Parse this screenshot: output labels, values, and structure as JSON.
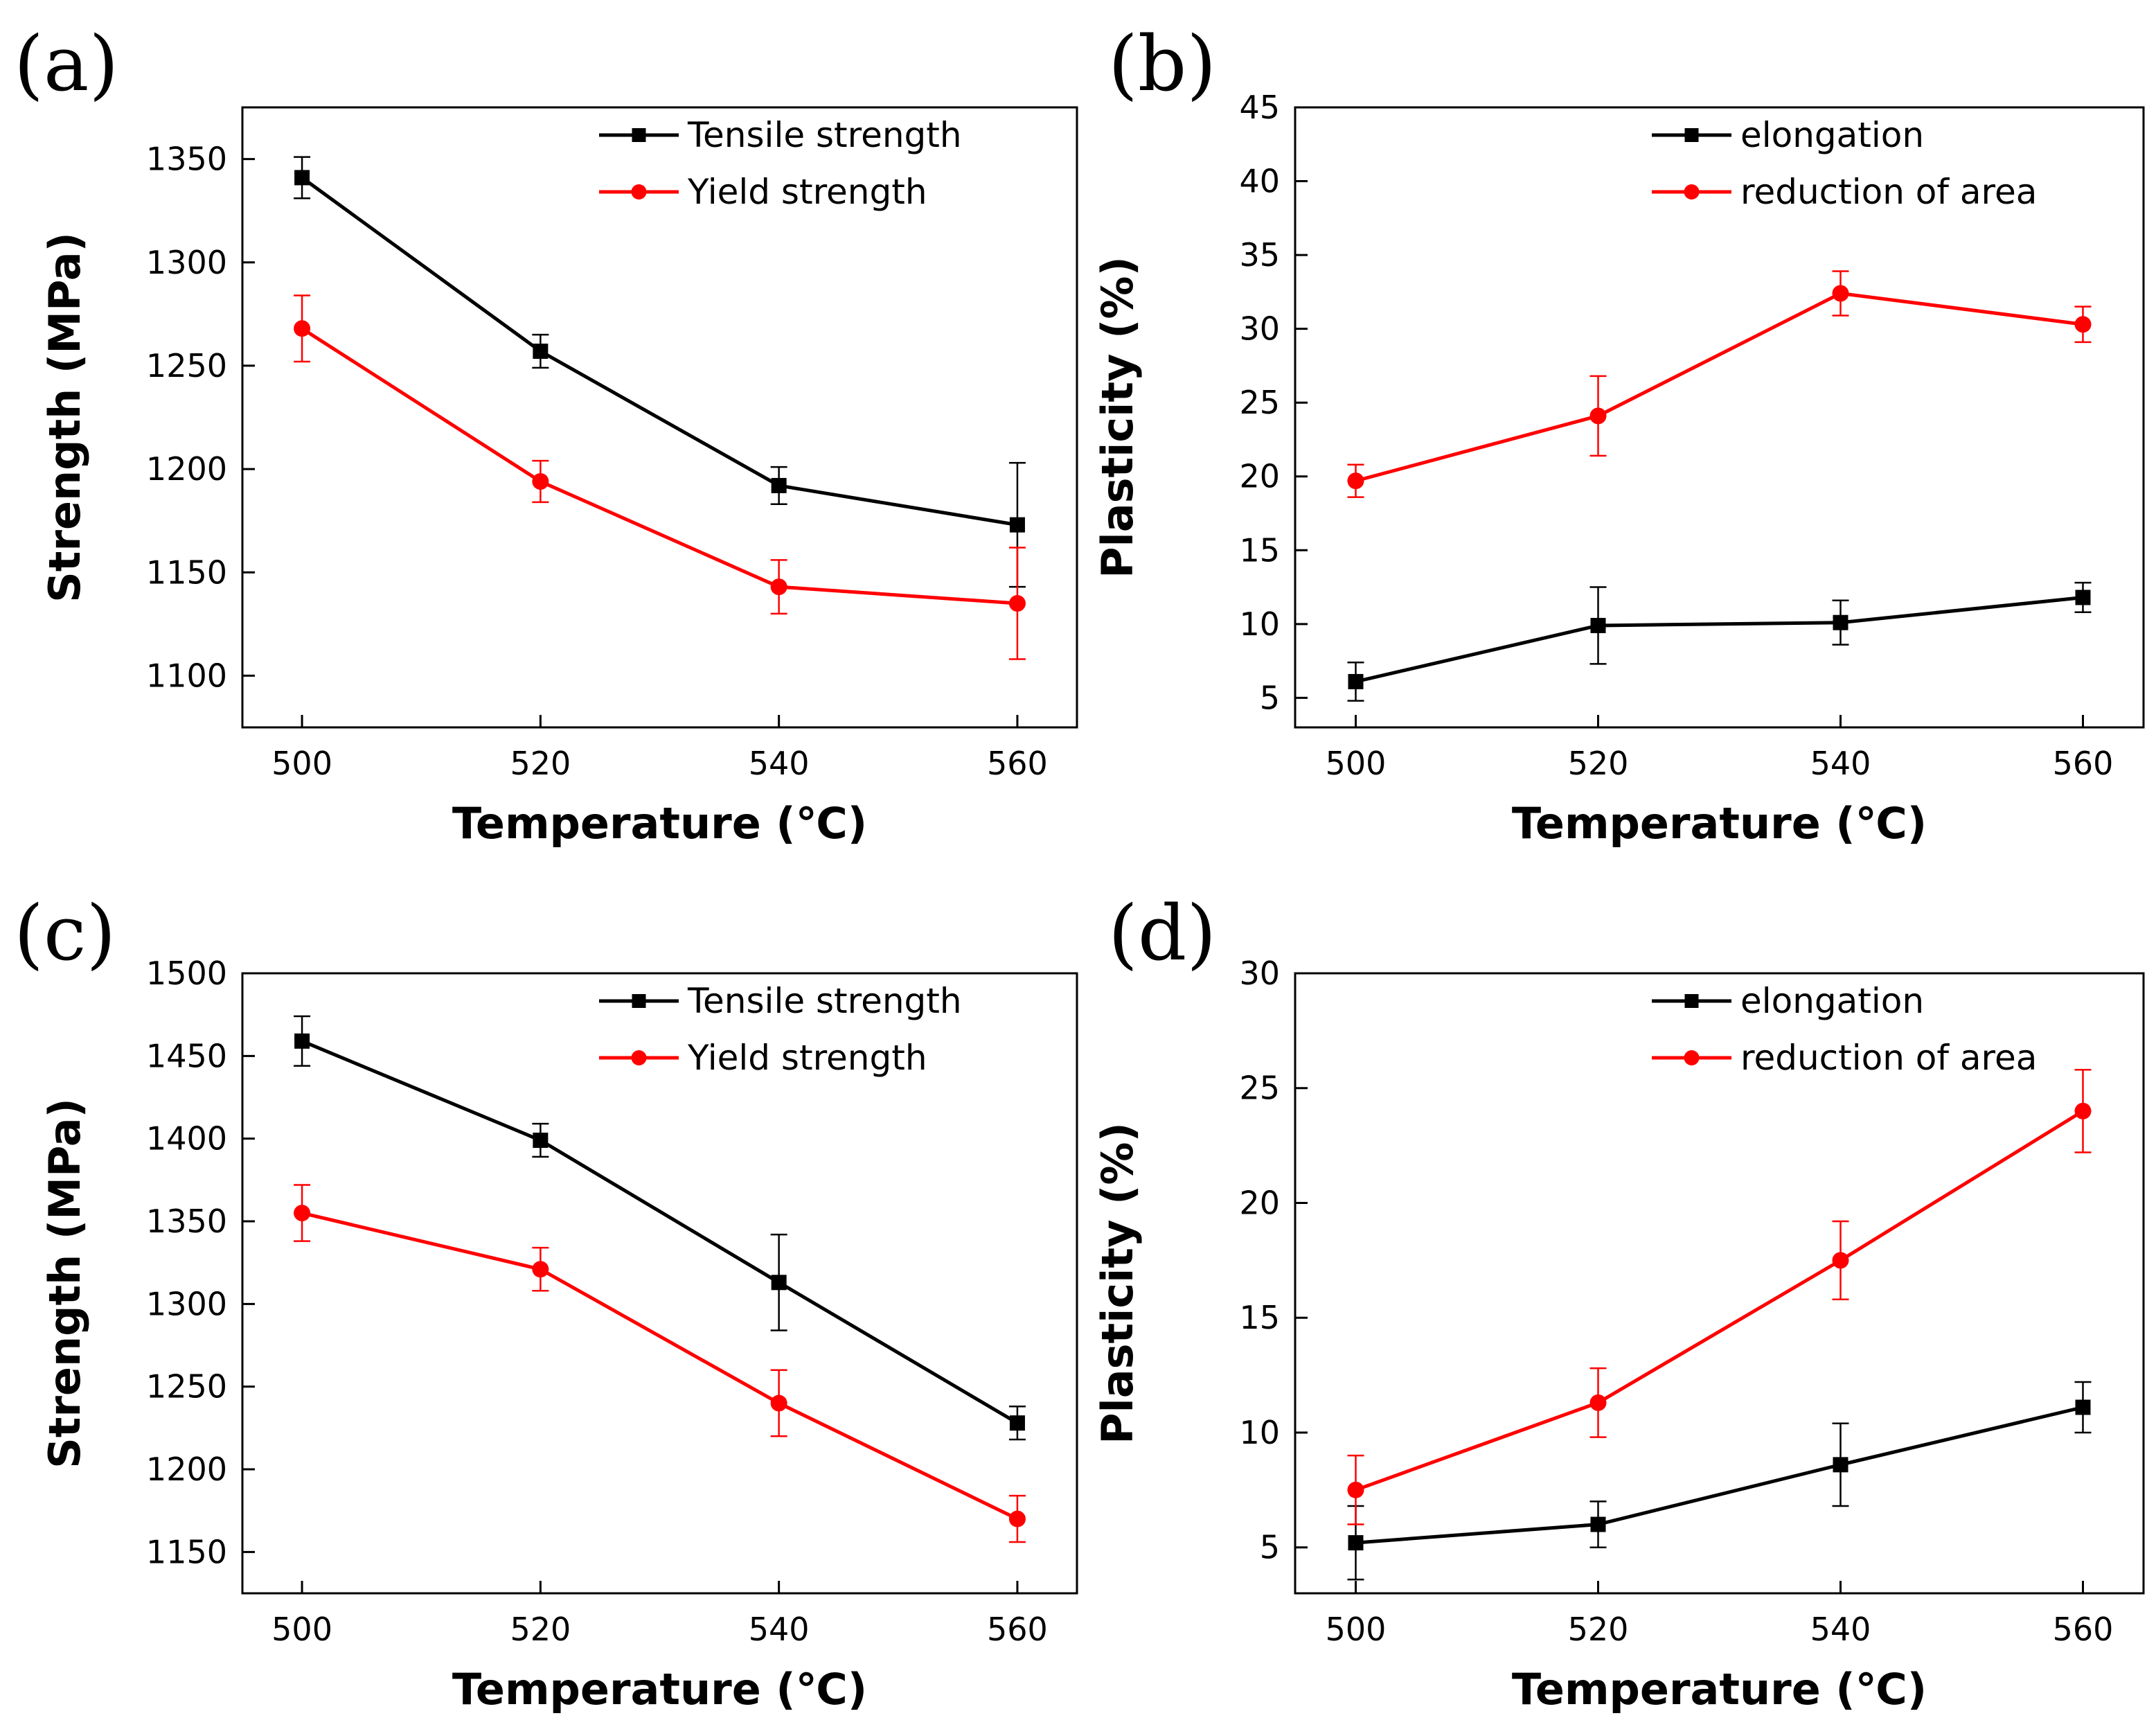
{
  "figure": {
    "colors": {
      "series1": "#000000",
      "series2": "#ff0000"
    }
  },
  "chart_data": [
    {
      "type": "line",
      "panel_label": "(a)",
      "title": "",
      "xlabel": "Temperature (℃)",
      "ylabel": "Strength (MPa)",
      "x": [
        500,
        520,
        540,
        560
      ],
      "xlim": [
        495,
        565
      ],
      "ylim": [
        1075,
        1375
      ],
      "xticks": [
        "500",
        "520",
        "540",
        "560"
      ],
      "yticks": [
        "1100",
        "1150",
        "1200",
        "1250",
        "1300",
        "1350"
      ],
      "ytick_values": [
        1100,
        1150,
        1200,
        1250,
        1300,
        1350
      ],
      "legend_position": "top-right",
      "series": [
        {
          "name": "Tensile strength",
          "color": "#000000",
          "marker": "square",
          "values": [
            1341,
            1257,
            1192,
            1173
          ],
          "errors": [
            10,
            8,
            9,
            30
          ]
        },
        {
          "name": "Yield strength",
          "color": "#ff0000",
          "marker": "circle",
          "values": [
            1268,
            1194,
            1143,
            1135
          ],
          "errors": [
            16,
            10,
            13,
            27
          ]
        }
      ]
    },
    {
      "type": "line",
      "panel_label": "(b)",
      "title": "",
      "xlabel": "Temperature (℃)",
      "ylabel": "Plasticity (%)",
      "x": [
        500,
        520,
        540,
        560
      ],
      "xlim": [
        495,
        565
      ],
      "ylim": [
        3,
        45
      ],
      "xticks": [
        "500",
        "520",
        "540",
        "560"
      ],
      "yticks": [
        "5",
        "10",
        "15",
        "20",
        "25",
        "30",
        "35",
        "40",
        "45"
      ],
      "ytick_values": [
        5,
        10,
        15,
        20,
        25,
        30,
        35,
        40,
        45
      ],
      "legend_position": "top-right",
      "series": [
        {
          "name": "elongation",
          "color": "#000000",
          "marker": "square",
          "values": [
            6.1,
            9.9,
            10.1,
            11.8
          ],
          "errors": [
            1.3,
            2.6,
            1.5,
            1.0
          ]
        },
        {
          "name": "reduction of area",
          "color": "#ff0000",
          "marker": "circle",
          "values": [
            19.7,
            24.1,
            32.4,
            30.3
          ],
          "errors": [
            1.1,
            2.7,
            1.5,
            1.2
          ]
        }
      ]
    },
    {
      "type": "line",
      "panel_label": "(c)",
      "title": "",
      "xlabel": "Temperature (℃)",
      "ylabel": "Strength (MPa)",
      "x": [
        500,
        520,
        540,
        560
      ],
      "xlim": [
        495,
        565
      ],
      "ylim": [
        1125,
        1500
      ],
      "xticks": [
        "500",
        "520",
        "540",
        "560"
      ],
      "yticks": [
        "1150",
        "1200",
        "1250",
        "1300",
        "1350",
        "1400",
        "1450",
        "1500"
      ],
      "ytick_values": [
        1150,
        1200,
        1250,
        1300,
        1350,
        1400,
        1450,
        1500
      ],
      "legend_position": "top-right",
      "series": [
        {
          "name": "Tensile strength",
          "color": "#000000",
          "marker": "square",
          "values": [
            1459,
            1399,
            1313,
            1228
          ],
          "errors": [
            15,
            10,
            29,
            10
          ]
        },
        {
          "name": "Yield strength",
          "color": "#ff0000",
          "marker": "circle",
          "values": [
            1355,
            1321,
            1240,
            1170
          ],
          "errors": [
            17,
            13,
            20,
            14
          ]
        }
      ]
    },
    {
      "type": "line",
      "panel_label": "(d)",
      "title": "",
      "xlabel": "Temperature (℃)",
      "ylabel": "Plasticity (%)",
      "x": [
        500,
        520,
        540,
        560
      ],
      "xlim": [
        495,
        565
      ],
      "ylim": [
        3,
        30
      ],
      "xticks": [
        "500",
        "520",
        "540",
        "560"
      ],
      "yticks": [
        "5",
        "10",
        "15",
        "20",
        "25",
        "30"
      ],
      "ytick_values": [
        5,
        10,
        15,
        20,
        25,
        30
      ],
      "legend_position": "top-right",
      "series": [
        {
          "name": "elongation",
          "color": "#000000",
          "marker": "square",
          "values": [
            5.2,
            6.0,
            8.6,
            11.1
          ],
          "errors": [
            1.6,
            1.0,
            1.8,
            1.1
          ]
        },
        {
          "name": "reduction of area",
          "color": "#ff0000",
          "marker": "circle",
          "values": [
            7.5,
            11.3,
            17.5,
            24.0
          ],
          "errors": [
            1.5,
            1.5,
            1.7,
            1.8
          ]
        }
      ]
    }
  ]
}
